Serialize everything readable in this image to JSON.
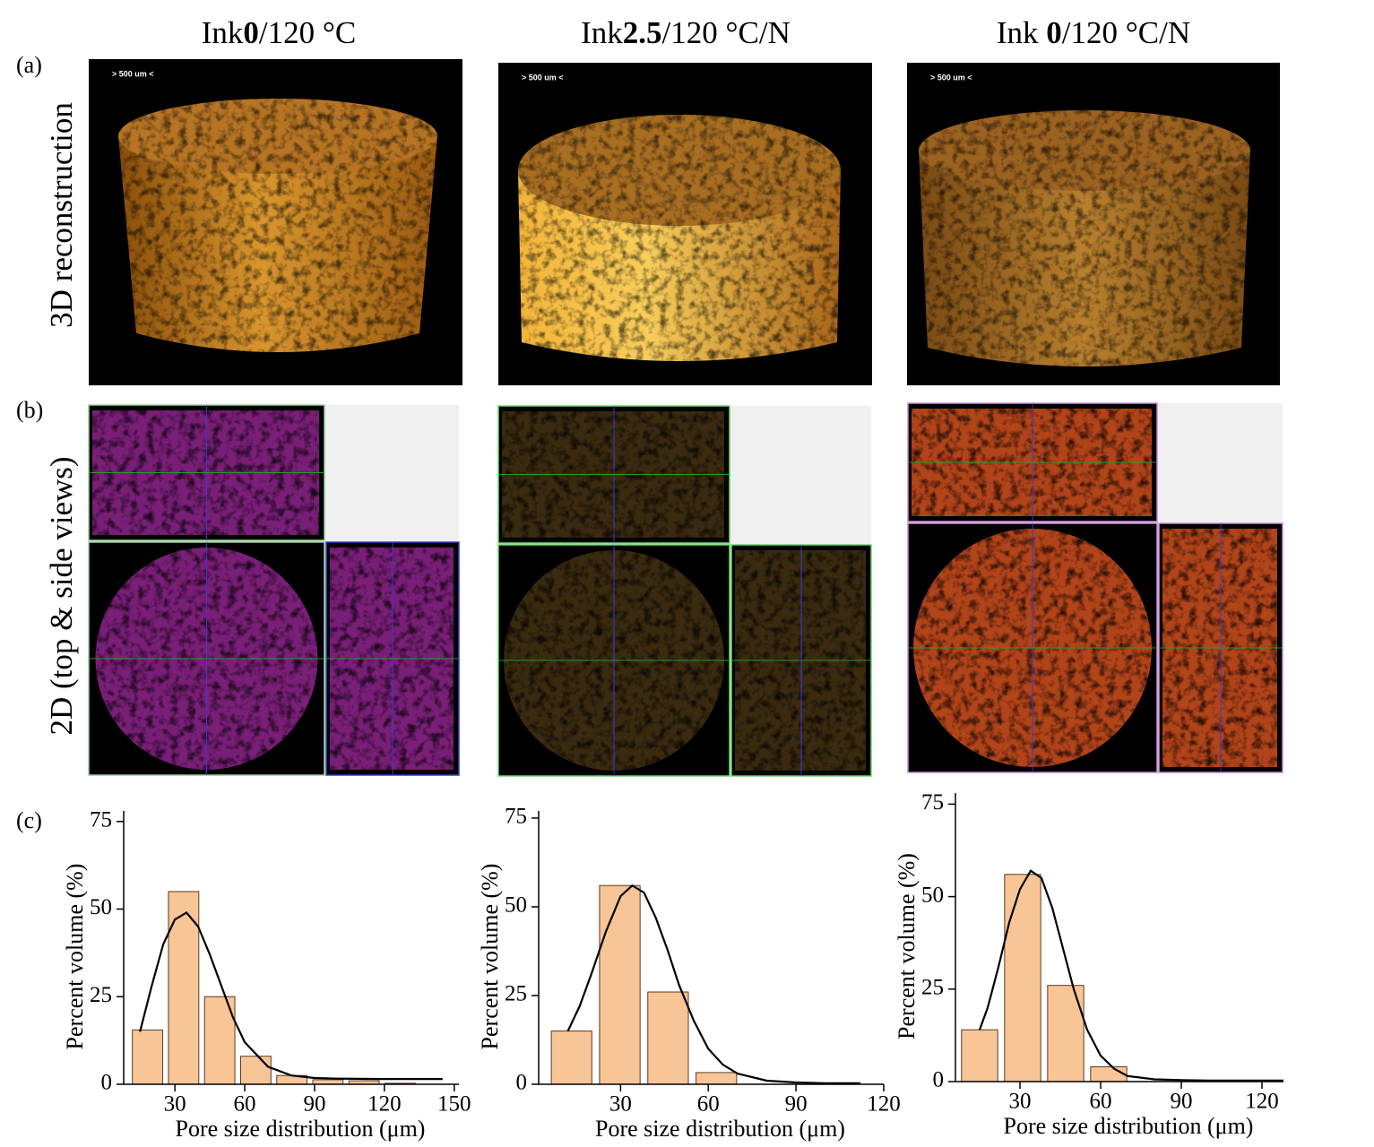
{
  "columns": [
    {
      "header": {
        "prefix": "Ink",
        "bold": "0",
        "suffix": "/120 °C"
      },
      "scale_bar": "> 500 um <"
    },
    {
      "header": {
        "prefix": "Ink",
        "bold": "2.5",
        "suffix": "/120 °C/N"
      },
      "scale_bar": "> 500 um <"
    },
    {
      "header": {
        "prefix": "Ink ",
        "bold": "0",
        "suffix": "/120 °C/N"
      },
      "scale_bar": "> 500 um <"
    }
  ],
  "panel_labels": [
    "(a)",
    "(b)",
    "(c)"
  ],
  "row_labels": [
    "3D reconstruction",
    "2D (top & side views)"
  ],
  "chart_data": [
    {
      "type": "histogram",
      "ylabel": "Percent volume (%)",
      "xlabel": "Pore size distribution (μm)",
      "bins": [
        10.5,
        26,
        41.5,
        57,
        72.5,
        88,
        103.5,
        119,
        134.5
      ],
      "values": [
        15.5,
        55,
        25,
        8,
        2.5,
        1.3,
        1,
        0.3
      ],
      "color": "#f8c597",
      "fit": {
        "x": [
          15,
          20,
          25,
          30,
          35,
          40,
          45,
          50,
          55,
          60,
          70,
          80,
          90,
          100,
          120,
          145
        ],
        "values": [
          15,
          28,
          40,
          47,
          49,
          45,
          37,
          28,
          19,
          12,
          5,
          2.5,
          1.8,
          1.6,
          1.5,
          1.5
        ],
        "color": "#000000"
      },
      "xlim": [
        8,
        152
      ],
      "xticks": [
        30,
        60,
        90,
        120,
        150
      ],
      "ylim": [
        0,
        78
      ],
      "yticks": [
        0,
        25,
        50,
        75
      ]
    },
    {
      "type": "histogram",
      "ylabel": "Percent volume (%)",
      "xlabel": "Pore size distribution (μm)",
      "bins": [
        5,
        21.5,
        38,
        54.5,
        71
      ],
      "values": [
        15,
        56,
        26,
        3.3
      ],
      "color": "#f8c597",
      "fit": {
        "x": [
          12,
          16,
          20,
          25,
          30,
          34,
          38,
          42,
          46,
          50,
          55,
          60,
          65,
          70,
          80,
          90,
          100,
          112
        ],
        "values": [
          15,
          22,
          31,
          43,
          53,
          56,
          54,
          47,
          38,
          28,
          18,
          10,
          5.5,
          3,
          1,
          0.5,
          0.3,
          0.3
        ],
        "color": "#000000"
      },
      "xlim": [
        2,
        120
      ],
      "xticks": [
        30,
        60,
        90,
        120
      ],
      "ylim": [
        0,
        77
      ],
      "yticks": [
        0,
        25,
        50,
        75
      ]
    },
    {
      "type": "histogram",
      "ylabel": "Percent volume (%)",
      "xlabel": "Pore size distribution (μm)",
      "bins": [
        7,
        23,
        39,
        55,
        71
      ],
      "values": [
        14,
        56,
        26,
        4
      ],
      "color": "#f8c597",
      "fit": {
        "x": [
          15,
          18,
          22,
          26,
          30,
          34,
          38,
          42,
          46,
          50,
          55,
          60,
          65,
          70,
          80,
          90,
          100,
          110,
          128
        ],
        "values": [
          14,
          20,
          31,
          43,
          52,
          57,
          55,
          47,
          36,
          25,
          14,
          7,
          3.5,
          1.5,
          0.6,
          0.4,
          0.3,
          0.3,
          0.3
        ],
        "color": "#000000"
      },
      "xlim": [
        6,
        128
      ],
      "xticks": [
        30,
        60,
        90,
        120
      ],
      "ylim": [
        0,
        78
      ],
      "yticks": [
        0,
        25,
        50,
        75
      ]
    }
  ]
}
